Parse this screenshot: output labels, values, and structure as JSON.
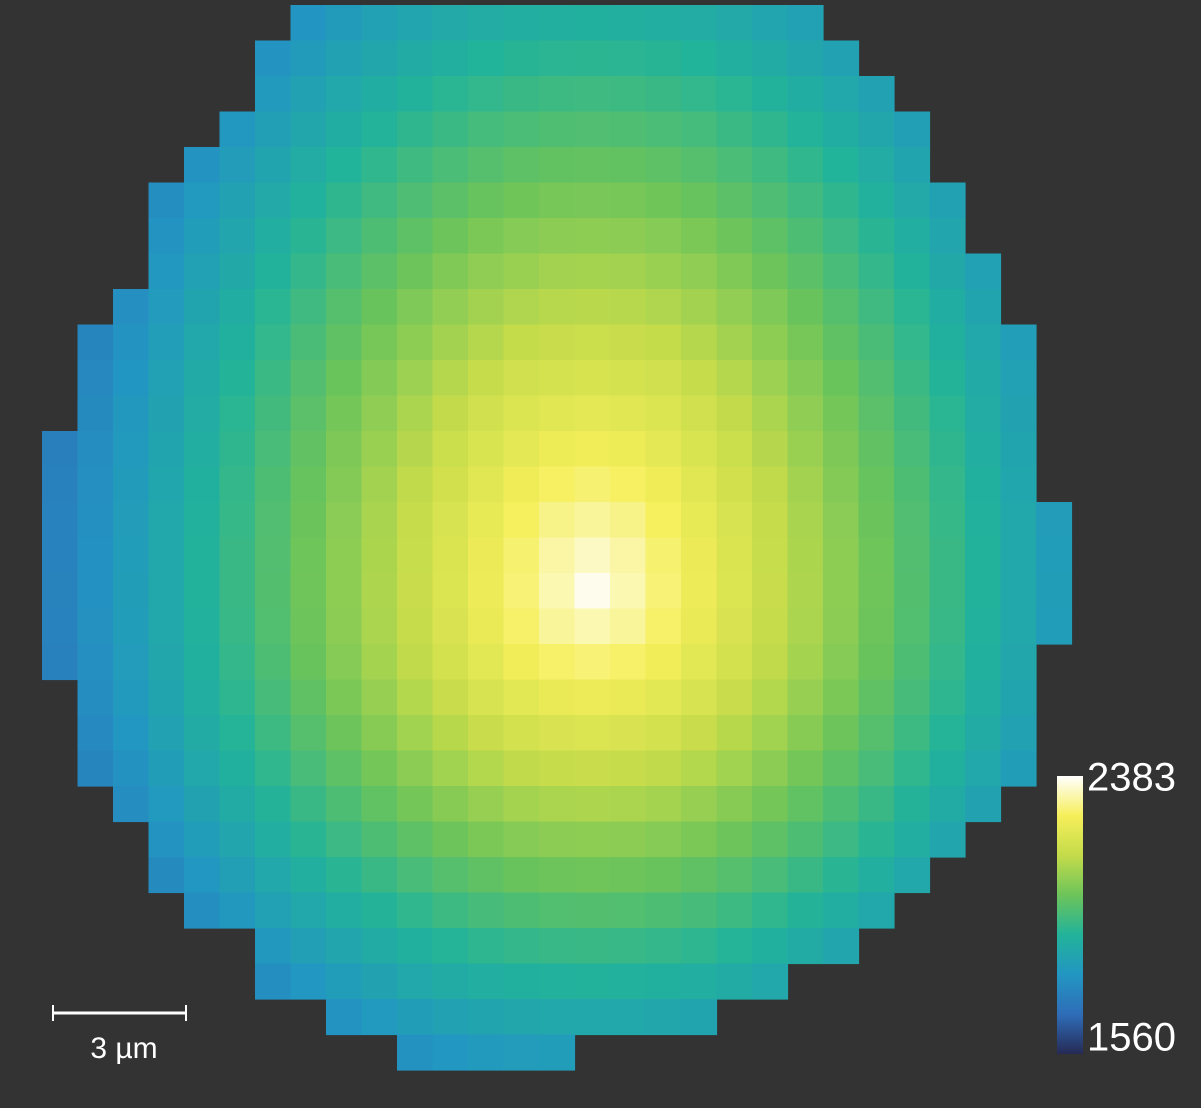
{
  "chart_data": {
    "type": "heatmap",
    "clim": [
      1560,
      2383
    ],
    "colorbar_ticks": [
      2383,
      1560
    ],
    "colormap": [
      "#262a55",
      "#2e6db8",
      "#2296c2",
      "#22b39a",
      "#6cc45a",
      "#c4db4a",
      "#f6ef5a",
      "#ffffff"
    ],
    "scale_bar_label": "3 µm",
    "z": [
      [
        null,
        null,
        null,
        null,
        null,
        null,
        null,
        1792,
        1815,
        1837,
        1855,
        1871,
        1883,
        1892,
        1898,
        1900,
        1898,
        1892,
        1883,
        1871,
        1855,
        1837,
        null,
        null,
        null,
        null,
        null,
        null,
        null
      ],
      [
        null,
        null,
        null,
        null,
        null,
        null,
        1789,
        1816,
        1840,
        1862,
        1882,
        1898,
        1911,
        1921,
        1927,
        1929,
        1927,
        1921,
        1911,
        1898,
        1882,
        1862,
        1840,
        null,
        null,
        null,
        null,
        null,
        null
      ],
      [
        null,
        null,
        null,
        null,
        null,
        null,
        1811,
        1839,
        1864,
        1887,
        1908,
        1926,
        1939,
        1950,
        1956,
        1958,
        1956,
        1950,
        1939,
        1926,
        1908,
        1887,
        1864,
        1839,
        null,
        null,
        null,
        null,
        null
      ],
      [
        null,
        null,
        null,
        null,
        null,
        1802,
        1832,
        1861,
        1888,
        1912,
        1934,
        1953,
        1968,
        1979,
        1986,
        1988,
        1986,
        1979,
        1968,
        1953,
        1934,
        1912,
        1888,
        1861,
        1832,
        null,
        null,
        null,
        null
      ],
      [
        null,
        null,
        null,
        null,
        1789,
        1821,
        1853,
        1883,
        1911,
        1937,
        1959,
        1979,
        1995,
        2008,
        2015,
        2017,
        2015,
        2008,
        1995,
        1979,
        1959,
        1937,
        1911,
        1883,
        1853,
        null,
        null,
        null,
        null
      ],
      [
        null,
        null,
        null,
        1771,
        1806,
        1840,
        1873,
        1904,
        1933,
        1960,
        1984,
        2005,
        2023,
        2036,
        2044,
        2047,
        2044,
        2036,
        2023,
        2005,
        1984,
        1960,
        1933,
        1904,
        1873,
        1840,
        null,
        null,
        null
      ],
      [
        null,
        null,
        null,
        1787,
        1822,
        1857,
        1891,
        1924,
        1954,
        1983,
        2009,
        2031,
        2050,
        2064,
        2073,
        2076,
        2073,
        2064,
        2050,
        2031,
        2009,
        1983,
        1954,
        1924,
        1891,
        1857,
        null,
        null,
        null
      ],
      [
        null,
        null,
        null,
        1801,
        1837,
        1874,
        1908,
        1942,
        1974,
        2005,
        2032,
        2057,
        2077,
        2092,
        2102,
        2105,
        2102,
        2092,
        2077,
        2057,
        2032,
        2005,
        1974,
        1942,
        1908,
        1874,
        1837,
        null,
        null
      ],
      [
        null,
        null,
        1776,
        1814,
        1852,
        1889,
        1925,
        1960,
        1994,
        2025,
        2055,
        2081,
        2103,
        2120,
        2131,
        2135,
        2131,
        2120,
        2103,
        2081,
        2055,
        2025,
        1994,
        1960,
        1925,
        1889,
        1852,
        null,
        null
      ],
      [
        null,
        1747,
        1787,
        1826,
        1864,
        1902,
        1939,
        1976,
        2011,
        2044,
        2076,
        2104,
        2128,
        2148,
        2160,
        2164,
        2160,
        2148,
        2128,
        2104,
        2076,
        2044,
        2011,
        1976,
        1939,
        1902,
        1864,
        1826,
        null
      ],
      [
        null,
        1756,
        1796,
        1836,
        1876,
        1914,
        1953,
        1990,
        2027,
        2063,
        2096,
        2126,
        2153,
        2175,
        2189,
        2194,
        2189,
        2175,
        2153,
        2126,
        2096,
        2063,
        2027,
        1990,
        1953,
        1914,
        1876,
        1836,
        null
      ],
      [
        null,
        1764,
        1805,
        1845,
        1885,
        1925,
        1964,
        2003,
        2041,
        2078,
        2114,
        2147,
        2176,
        2201,
        2217,
        2223,
        2217,
        2201,
        2176,
        2147,
        2114,
        2078,
        2041,
        2003,
        1964,
        1925,
        1885,
        1845,
        null
      ],
      [
        1729,
        1770,
        1811,
        1853,
        1893,
        1934,
        1974,
        2014,
        2053,
        2092,
        2129,
        2165,
        2198,
        2226,
        2245,
        2252,
        2245,
        2226,
        2198,
        2165,
        2129,
        2092,
        2053,
        2014,
        1974,
        1934,
        1893,
        1853,
        null
      ],
      [
        1734,
        1775,
        1817,
        1858,
        1900,
        1941,
        1982,
        2023,
        2063,
        2103,
        2142,
        2180,
        2216,
        2248,
        2272,
        2282,
        2272,
        2248,
        2216,
        2180,
        2142,
        2103,
        2063,
        2023,
        1982,
        1941,
        1900,
        1858,
        null
      ],
      [
        1737,
        1779,
        1821,
        1863,
        1904,
        1946,
        1987,
        2029,
        2070,
        2111,
        2152,
        2192,
        2231,
        2268,
        2298,
        2311,
        2298,
        2268,
        2231,
        2192,
        2152,
        2111,
        2070,
        2029,
        1987,
        1946,
        1904,
        1863,
        1821
      ],
      [
        1739,
        1781,
        1823,
        1865,
        1907,
        1949,
        1991,
        2033,
        2075,
        2116,
        2158,
        2199,
        2241,
        2281,
        2319,
        2341,
        2319,
        2281,
        2241,
        2199,
        2158,
        2116,
        2075,
        2033,
        1991,
        1949,
        1907,
        1865,
        1823
      ],
      [
        1740,
        1782,
        1824,
        1866,
        1908,
        1950,
        1992,
        2034,
        2076,
        2118,
        2160,
        2202,
        2244,
        2286,
        2328,
        2370,
        2328,
        2286,
        2244,
        2202,
        2160,
        2118,
        2076,
        2034,
        1992,
        1950,
        1908,
        1866,
        1824
      ],
      [
        1739,
        1780,
        1822,
        1864,
        1906,
        1948,
        1989,
        2031,
        2073,
        2115,
        2156,
        2197,
        2237,
        2276,
        2311,
        2328,
        2311,
        2276,
        2237,
        2197,
        2156,
        2115,
        2073,
        2031,
        1989,
        1948,
        1906,
        1864,
        1822
      ],
      [
        1735,
        1776,
        1818,
        1859,
        1900,
        1942,
        1983,
        2024,
        2064,
        2105,
        2144,
        2182,
        2218,
        2251,
        2276,
        2286,
        2276,
        2251,
        2218,
        2182,
        2144,
        2105,
        2064,
        2024,
        1983,
        1942,
        1900,
        1859,
        null
      ],
      [
        null,
        1769,
        1810,
        1850,
        1891,
        1932,
        1971,
        2011,
        2050,
        2088,
        2125,
        2160,
        2192,
        2218,
        2237,
        2244,
        2237,
        2218,
        2192,
        2160,
        2125,
        2088,
        2050,
        2011,
        1971,
        1932,
        1891,
        1850,
        null
      ],
      [
        null,
        1758,
        1799,
        1839,
        1879,
        1918,
        1956,
        1995,
        2031,
        2067,
        2101,
        2132,
        2160,
        2182,
        2197,
        2202,
        2197,
        2182,
        2160,
        2132,
        2101,
        2067,
        2031,
        1995,
        1956,
        1918,
        1879,
        1839,
        null
      ],
      [
        null,
        1745,
        1785,
        1824,
        1863,
        1900,
        1937,
        1974,
        2009,
        2042,
        2073,
        2101,
        2125,
        2144,
        2156,
        2160,
        2156,
        2144,
        2125,
        2101,
        2073,
        2042,
        2009,
        1974,
        1937,
        1900,
        1863,
        1824,
        null
      ],
      [
        null,
        null,
        1769,
        1806,
        1844,
        1880,
        1916,
        1950,
        1983,
        2013,
        2042,
        2067,
        2088,
        2105,
        2115,
        2118,
        2115,
        2105,
        2088,
        2067,
        2042,
        2013,
        1983,
        1950,
        1916,
        1880,
        1844,
        null,
        null
      ],
      [
        null,
        null,
        null,
        1787,
        1822,
        1857,
        1891,
        1924,
        1954,
        1983,
        2009,
        2031,
        2050,
        2064,
        2073,
        2076,
        2073,
        2064,
        2050,
        2031,
        2009,
        1983,
        1954,
        1924,
        1891,
        1857,
        null,
        null,
        null
      ],
      [
        null,
        null,
        null,
        1764,
        1799,
        1832,
        1864,
        1895,
        1924,
        1950,
        1974,
        1995,
        2011,
        2024,
        2031,
        2034,
        2031,
        2024,
        2011,
        1995,
        1974,
        1950,
        1924,
        1895,
        1864,
        null,
        null,
        null,
        null
      ],
      [
        null,
        null,
        null,
        null,
        1773,
        1805,
        1835,
        1864,
        1891,
        1916,
        1937,
        1956,
        1971,
        1983,
        1989,
        1992,
        1989,
        1983,
        1971,
        1956,
        1937,
        1916,
        1891,
        1864,
        null,
        null,
        null,
        null,
        null
      ],
      [
        null,
        null,
        null,
        null,
        null,
        null,
        1805,
        1832,
        1857,
        1880,
        1900,
        1918,
        1932,
        1942,
        1948,
        1950,
        1948,
        1942,
        1932,
        1918,
        1900,
        1880,
        1857,
        null,
        null,
        null,
        null,
        null,
        null
      ],
      [
        null,
        null,
        null,
        null,
        null,
        null,
        1773,
        1799,
        1822,
        1844,
        1863,
        1879,
        1891,
        1900,
        1906,
        1908,
        1906,
        1900,
        1891,
        1879,
        1863,
        null,
        null,
        null,
        null,
        null,
        null,
        null,
        null
      ],
      [
        null,
        null,
        null,
        null,
        null,
        null,
        null,
        null,
        1787,
        1806,
        1824,
        1839,
        1850,
        1859,
        1864,
        1866,
        1864,
        1859,
        1850,
        null,
        null,
        null,
        null,
        null,
        null,
        null,
        null,
        null,
        null
      ],
      [
        null,
        null,
        null,
        null,
        null,
        null,
        null,
        null,
        null,
        null,
        1785,
        1799,
        1810,
        1818,
        1822,
        null,
        null,
        null,
        null,
        null,
        null,
        null,
        null,
        null,
        null,
        null,
        null,
        null,
        null
      ]
    ]
  }
}
